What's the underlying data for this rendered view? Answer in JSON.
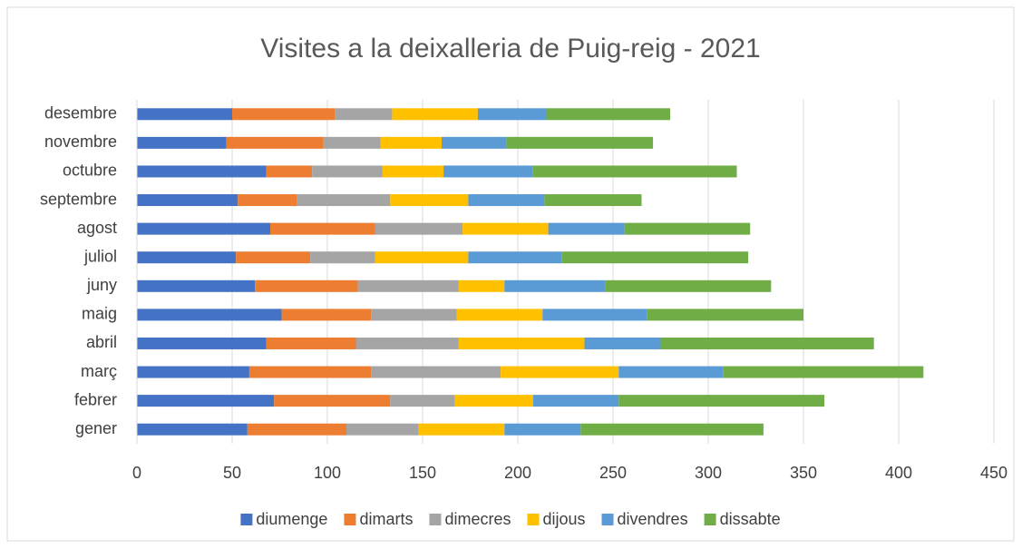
{
  "chart_data": {
    "type": "stacked_barh",
    "title": "Visites a la deixalleria de Puig-reig - 2021",
    "categories": [
      "gener",
      "febrer",
      "març",
      "abril",
      "maig",
      "juny",
      "juliol",
      "agost",
      "septembre",
      "octubre",
      "novembre",
      "desembre"
    ],
    "series": [
      {
        "name": "diumenge",
        "color": "#4472c4",
        "values": [
          58,
          72,
          59,
          68,
          76,
          62,
          52,
          70,
          53,
          68,
          47,
          50
        ]
      },
      {
        "name": "dimarts",
        "color": "#ed7d31",
        "values": [
          52,
          61,
          64,
          47,
          47,
          54,
          39,
          55,
          31,
          24,
          51,
          54
        ]
      },
      {
        "name": "dimecres",
        "color": "#a5a5a5",
        "values": [
          38,
          34,
          68,
          54,
          45,
          53,
          34,
          46,
          49,
          37,
          30,
          30
        ]
      },
      {
        "name": "dijous",
        "color": "#ffc000",
        "values": [
          45,
          41,
          62,
          66,
          45,
          24,
          49,
          45,
          41,
          32,
          32,
          45
        ]
      },
      {
        "name": "divendres",
        "color": "#5b9bd5",
        "values": [
          40,
          45,
          55,
          40,
          55,
          53,
          49,
          40,
          40,
          47,
          34,
          36
        ]
      },
      {
        "name": "dissabte",
        "color": "#70ad47",
        "values": [
          96,
          108,
          105,
          112,
          82,
          87,
          98,
          66,
          51,
          107,
          77,
          65
        ]
      }
    ],
    "xlim": [
      0,
      450
    ],
    "xticks": [
      0,
      50,
      100,
      150,
      200,
      250,
      300,
      350,
      400,
      450
    ],
    "grid": true,
    "legend": "bottom"
  }
}
